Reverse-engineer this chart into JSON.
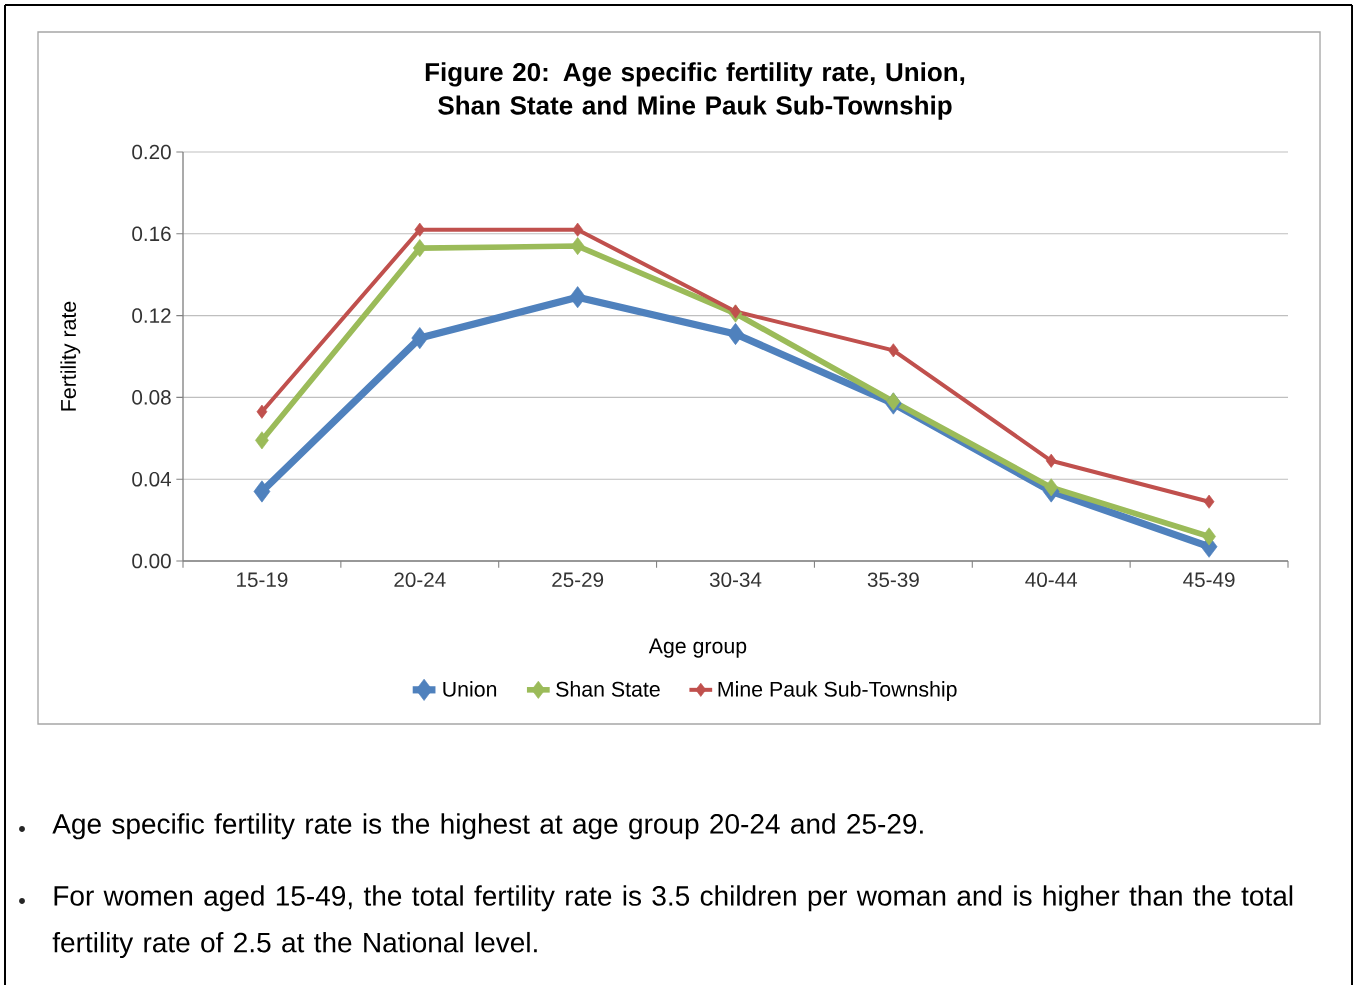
{
  "chart_data": {
    "type": "line",
    "title": "Figure 20: Age specific fertility rate, Union, Shan State and Mine Pauk Sub-Township",
    "xlabel": "Age group",
    "ylabel": "Fertility rate",
    "categories": [
      "15-19",
      "20-24",
      "25-29",
      "30-34",
      "35-39",
      "40-44",
      "45-49"
    ],
    "series": [
      {
        "name": "Union",
        "color": "#4f81bd",
        "values": [
          0.034,
          0.109,
          0.129,
          0.111,
          0.077,
          0.034,
          0.007
        ]
      },
      {
        "name": "Shan State",
        "color": "#9bbb59",
        "values": [
          0.059,
          0.153,
          0.154,
          0.121,
          0.078,
          0.036,
          0.012
        ]
      },
      {
        "name": "Mine Pauk Sub-Township",
        "color": "#c0504d",
        "values": [
          0.073,
          0.162,
          0.162,
          0.122,
          0.103,
          0.049,
          0.029
        ]
      }
    ],
    "ylim": [
      0,
      0.2
    ],
    "yticks": [
      {
        "value": 0,
        "label": "0.00"
      },
      {
        "value": 0.04,
        "label": "0.04"
      },
      {
        "value": 0.08,
        "label": "0.08"
      },
      {
        "value": 0.12,
        "label": "0.12"
      },
      {
        "value": 0.16,
        "label": "0.16"
      },
      {
        "value": 0.2,
        "label": "0.20"
      }
    ],
    "grid": "y",
    "legend": "bottom",
    "marker": "diamond",
    "line_style": "solid",
    "annotations": [
      "Age specific fertility rate is the highest at age group 20-24 and 25-29.",
      "For women aged 15-49, the total fertility rate is 3.5 children per woman and is higher than the total fertility rate of 2.5 at the National level."
    ]
  }
}
